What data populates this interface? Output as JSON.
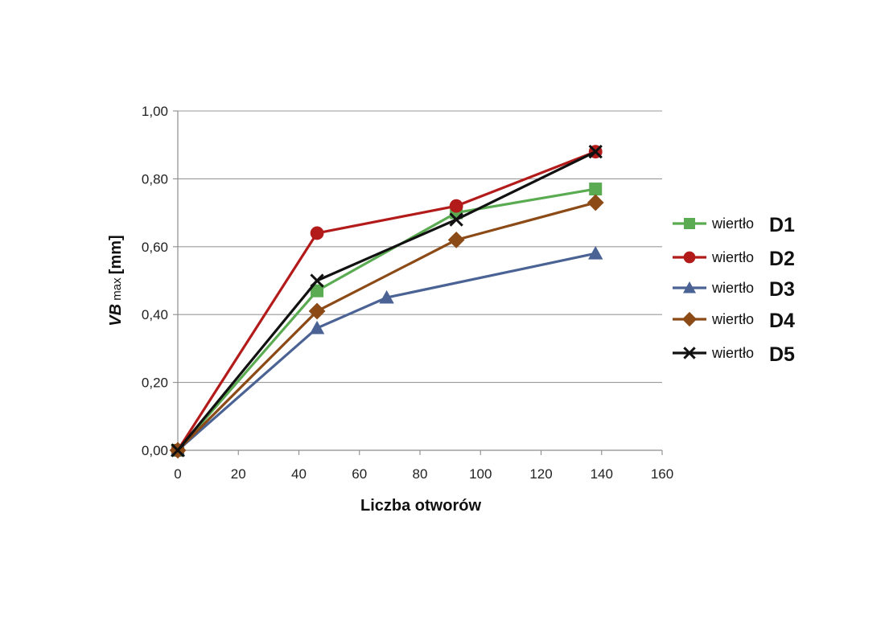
{
  "chart_data": {
    "type": "line",
    "title": "",
    "xlabel": "Liczba otworów",
    "ylabel": {
      "main": "VB",
      "sub": " max ",
      "unit": "[mm]"
    },
    "xlim": [
      0,
      160
    ],
    "ylim": [
      0,
      1
    ],
    "xticks": [
      {
        "value": 0,
        "label": "0"
      },
      {
        "value": 20,
        "label": "20"
      },
      {
        "value": 40,
        "label": "40"
      },
      {
        "value": 60,
        "label": "60"
      },
      {
        "value": 80,
        "label": "80"
      },
      {
        "value": 100,
        "label": "100"
      },
      {
        "value": 120,
        "label": "120"
      },
      {
        "value": 140,
        "label": "140"
      },
      {
        "value": 160,
        "label": "160"
      }
    ],
    "yticks": [
      {
        "value": 0.0,
        "label": "0,00"
      },
      {
        "value": 0.2,
        "label": "0,20"
      },
      {
        "value": 0.4,
        "label": "0,40"
      },
      {
        "value": 0.6,
        "label": "0,60"
      },
      {
        "value": 0.8,
        "label": "0,80"
      },
      {
        "value": 1.0,
        "label": "1,00"
      }
    ],
    "grid": "horizontal",
    "legend_position": "right",
    "series": [
      {
        "name": "wiertło D1",
        "legend_prefix": "wiertło",
        "legend_code": "D1",
        "color": "#5bab52",
        "marker": "square",
        "x": [
          0,
          46,
          92,
          138
        ],
        "y": [
          0.0,
          0.47,
          0.7,
          0.77
        ]
      },
      {
        "name": "wiertło D2",
        "legend_prefix": "wiertło",
        "legend_code": "D2",
        "color": "#b31b1b",
        "marker": "circle",
        "x": [
          0,
          46,
          92,
          138
        ],
        "y": [
          0.0,
          0.64,
          0.72,
          0.88
        ]
      },
      {
        "name": "wiertło D3",
        "legend_prefix": "wiertło",
        "legend_code": "D3",
        "color": "#4a6394",
        "marker": "triangle",
        "x": [
          0,
          46,
          69,
          138
        ],
        "y": [
          0.0,
          0.36,
          0.45,
          0.58
        ]
      },
      {
        "name": "wiertło D4",
        "legend_prefix": "wiertło",
        "legend_code": "D4",
        "color": "#8b4a16",
        "marker": "diamond",
        "x": [
          0,
          46,
          92,
          138
        ],
        "y": [
          0.0,
          0.41,
          0.62,
          0.73
        ]
      },
      {
        "name": "wiertło D5",
        "legend_prefix": "wiertło",
        "legend_code": "D5",
        "color": "#111111",
        "marker": "x",
        "x": [
          0,
          46,
          92,
          138
        ],
        "y": [
          0.0,
          0.5,
          0.68,
          0.88
        ]
      }
    ]
  }
}
